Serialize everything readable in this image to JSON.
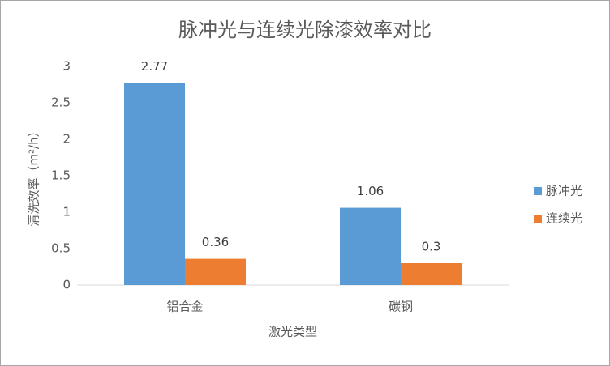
{
  "chart_data": {
    "type": "bar",
    "title": "脉冲光与连续光除漆效率对比",
    "x_label": "激光类型",
    "y_label": "清洗效率（m²/h）",
    "categories": [
      "铝合金",
      "碳钢"
    ],
    "series": [
      {
        "name": "脉冲光",
        "color": "#5b9bd5",
        "values": [
          2.77,
          1.06
        ]
      },
      {
        "name": "连续光",
        "color": "#ed7d31",
        "values": [
          0.36,
          0.3
        ]
      }
    ],
    "ylim": [
      0,
      3
    ],
    "yticks": [
      0,
      0.5,
      1,
      1.5,
      2,
      2.5,
      3
    ],
    "grid": false,
    "legend": "right"
  }
}
